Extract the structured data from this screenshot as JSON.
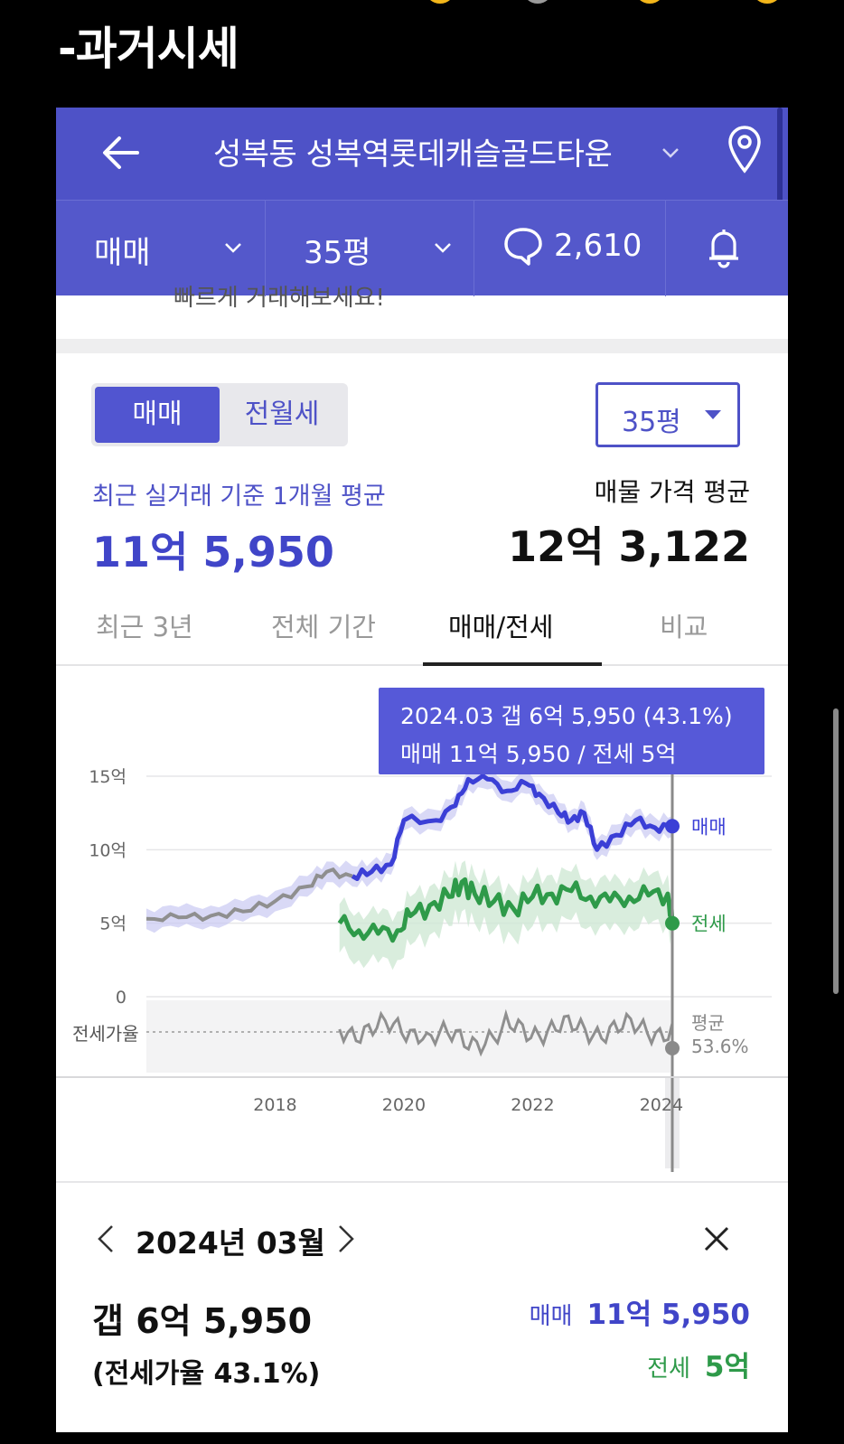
{
  "caption": "-과거시세",
  "header": {
    "title": "성복동 성복역롯데캐슬골드타운",
    "back_icon": "arrow-left-icon",
    "pin_icon": "map-pin-icon"
  },
  "subbar": {
    "trade_type": "매매",
    "size": "35평",
    "comment_count": "2,610"
  },
  "cut_text": "빠르게 거래해보세요!",
  "toggle": {
    "active": "매매",
    "inactive": "전월세"
  },
  "size_select": "35평",
  "summary": {
    "recent_label": "최근 실거래 기준 1개월 평균",
    "recent_value": "11억 5,950",
    "listing_label": "매물 가격 평균",
    "listing_value": "12억 3,122"
  },
  "tabs": [
    "최근 3년",
    "전체 기간",
    "매매/전세",
    "비교"
  ],
  "tooltip": {
    "line1": "2024.03  갭 6억 5,950 (43.1%)",
    "line2": "매매 11억 5,950 / 전세 5억"
  },
  "chart_data": {
    "type": "line",
    "y_ticks": [
      "15억",
      "10억",
      "5억",
      "0"
    ],
    "x_ticks": [
      "2018",
      "2020",
      "2022",
      "2024"
    ],
    "ratio_label": "전세가율",
    "avg_label_1": "평균",
    "avg_label_2": "53.6%",
    "series": [
      {
        "name": "매매",
        "color": "#3b3fd6",
        "x": [
          2016.0,
          2016.5,
          2017.0,
          2017.5,
          2018.0,
          2018.5,
          2018.8,
          2019.2,
          2019.5,
          2019.8,
          2020.0,
          2020.5,
          2020.8,
          2021.0,
          2021.3,
          2021.6,
          2021.9,
          2022.1,
          2022.4,
          2022.6,
          2022.8,
          2023.0,
          2023.3,
          2023.6,
          2023.9,
          2024.17
        ],
        "values": [
          5.3,
          5.4,
          5.5,
          5.8,
          6.5,
          7.5,
          8.5,
          8.2,
          8.5,
          9.0,
          12.0,
          12.0,
          13.0,
          14.8,
          14.8,
          14.0,
          14.5,
          13.8,
          12.5,
          12.0,
          12.5,
          10.0,
          11.0,
          12.0,
          11.5,
          11.6
        ]
      },
      {
        "name": "전세",
        "color": "#2e9a49",
        "x": [
          2019.0,
          2019.3,
          2019.6,
          2019.9,
          2020.1,
          2020.4,
          2020.7,
          2020.9,
          2021.1,
          2021.4,
          2021.7,
          2022.0,
          2022.3,
          2022.6,
          2022.9,
          2023.2,
          2023.5,
          2023.8,
          2024.1,
          2024.17
        ],
        "values": [
          5.0,
          4.5,
          4.3,
          4.5,
          5.5,
          6.2,
          6.8,
          7.8,
          7.0,
          6.5,
          6.0,
          6.8,
          7.0,
          7.2,
          6.8,
          6.5,
          6.8,
          6.9,
          7.0,
          5.0
        ]
      }
    ],
    "ylim": [
      0,
      15
    ],
    "xlim": [
      2016.0,
      2024.17
    ]
  },
  "detail": {
    "month": "2024년 03월",
    "gap": "갭 6억 5,950",
    "ratio": "(전세가율 43.1%)",
    "sale_label": "매매",
    "sale_value": "11억 5,950",
    "jeonse_label": "전세",
    "jeonse_value": "5억"
  },
  "colors": {
    "header_bg": "#4e52c7",
    "sale": "#4045c8",
    "jeonse": "#2e9a49"
  }
}
